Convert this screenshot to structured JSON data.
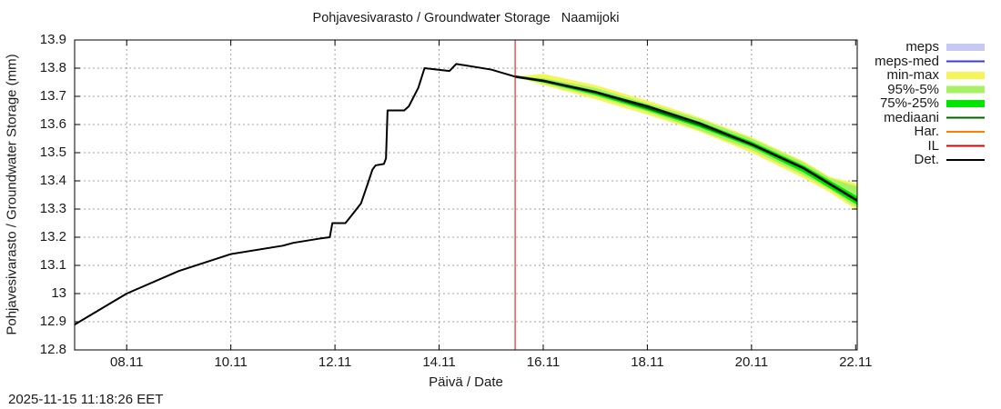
{
  "header": {
    "title": "Pohjavesivarasto / Groundwater Storage   Naamijoki"
  },
  "axes": {
    "ylabel": "Pohjavesivarasto / Groundwater Storage (mm)",
    "xlabel": "Päivä / Date",
    "yticks": [
      "13.9",
      "13.8",
      "13.7",
      "13.6",
      "13.5",
      "13.4",
      "13.3",
      "13.2",
      "13.1",
      "13",
      "12.9",
      "12.8"
    ],
    "xticks": [
      "08.11",
      "10.11",
      "12.11",
      "14.11",
      "16.11",
      "18.11",
      "20.11",
      "22.11"
    ]
  },
  "legend": {
    "items": [
      {
        "label": "meps",
        "color": "#c8c8f5",
        "style": "band"
      },
      {
        "label": "meps-med",
        "color": "#3c3ccc",
        "style": "line"
      },
      {
        "label": "min-max",
        "color": "#f5f55a",
        "style": "band"
      },
      {
        "label": "95%-5%",
        "color": "#a8f064",
        "style": "band"
      },
      {
        "label": "75%-25%",
        "color": "#00e600",
        "style": "band"
      },
      {
        "label": "mediaani",
        "color": "#006400",
        "style": "line"
      },
      {
        "label": "Har.",
        "color": "#ff7f00",
        "style": "line"
      },
      {
        "label": "IL",
        "color": "#e00000",
        "style": "line"
      },
      {
        "label": "Det.",
        "color": "#000000",
        "style": "line"
      }
    ]
  },
  "footer": {
    "timestamp": "2025-11-15 11:18:26 EET"
  },
  "colors": {
    "grid": "#a0a0a0",
    "axis": "#000000",
    "forecast_line": "#e00000"
  },
  "chart_data": {
    "type": "line",
    "title": "Pohjavesivarasto / Groundwater Storage   Naamijoki",
    "xlabel": "Päivä / Date",
    "ylabel": "Pohjavesivarasto / Groundwater Storage (mm)",
    "ylim": [
      12.8,
      13.9
    ],
    "xlim_days": [
      7.0,
      22.03
    ],
    "x_unit": "day of November 2025",
    "grid": true,
    "legend_position": "right",
    "forecast_start_day": 15.46,
    "series": [
      {
        "name": "Det.",
        "x": [
          7.0,
          8.0,
          9.0,
          10.0,
          11.0,
          11.2,
          11.7,
          11.9,
          11.95,
          12.2,
          12.33,
          12.5,
          12.63,
          12.72,
          12.78,
          12.94,
          12.98,
          13.01,
          13.33,
          13.42,
          13.6,
          13.72,
          14.2,
          14.33,
          15.0,
          15.46,
          16.0,
          17.0,
          18.0,
          19.0,
          20.0,
          21.0,
          22.03
        ],
        "values": [
          12.89,
          13.0,
          13.08,
          13.14,
          13.17,
          13.18,
          13.195,
          13.2,
          13.25,
          13.25,
          13.28,
          13.32,
          13.39,
          13.44,
          13.455,
          13.46,
          13.48,
          13.65,
          13.65,
          13.665,
          13.73,
          13.8,
          13.79,
          13.815,
          13.795,
          13.77,
          13.755,
          13.715,
          13.665,
          13.605,
          13.53,
          13.445,
          13.33
        ]
      },
      {
        "name": "mediaani",
        "x": [
          15.46,
          16.0,
          17.0,
          18.0,
          19.0,
          20.0,
          21.0,
          22.03
        ],
        "values": [
          13.77,
          13.755,
          13.715,
          13.66,
          13.6,
          13.53,
          13.445,
          13.33
        ]
      },
      {
        "name": "75%-25%",
        "x": [
          15.46,
          16.0,
          17.0,
          18.0,
          19.0,
          20.0,
          21.0,
          22.03
        ],
        "upper": [
          13.77,
          13.76,
          13.72,
          13.67,
          13.61,
          13.54,
          13.455,
          13.345
        ],
        "lower": [
          13.77,
          13.75,
          13.705,
          13.65,
          13.59,
          13.52,
          13.43,
          13.315
        ]
      },
      {
        "name": "95%-5%",
        "x": [
          15.46,
          16.0,
          17.0,
          18.0,
          19.0,
          20.0,
          21.0,
          21.5,
          22.03
        ],
        "upper": [
          13.77,
          13.765,
          13.73,
          13.675,
          13.62,
          13.55,
          13.465,
          13.41,
          13.38
        ],
        "lower": [
          13.77,
          13.745,
          13.7,
          13.645,
          13.58,
          13.51,
          13.42,
          13.37,
          13.305
        ]
      },
      {
        "name": "min-max",
        "x": [
          15.46,
          16.0,
          17.0,
          18.0,
          19.0,
          20.0,
          21.0,
          21.5,
          22.03
        ],
        "upper": [
          13.77,
          13.78,
          13.74,
          13.685,
          13.625,
          13.555,
          13.47,
          13.415,
          13.39
        ],
        "lower": [
          13.77,
          13.74,
          13.69,
          13.635,
          13.575,
          13.5,
          13.41,
          13.36,
          13.295
        ]
      }
    ]
  }
}
